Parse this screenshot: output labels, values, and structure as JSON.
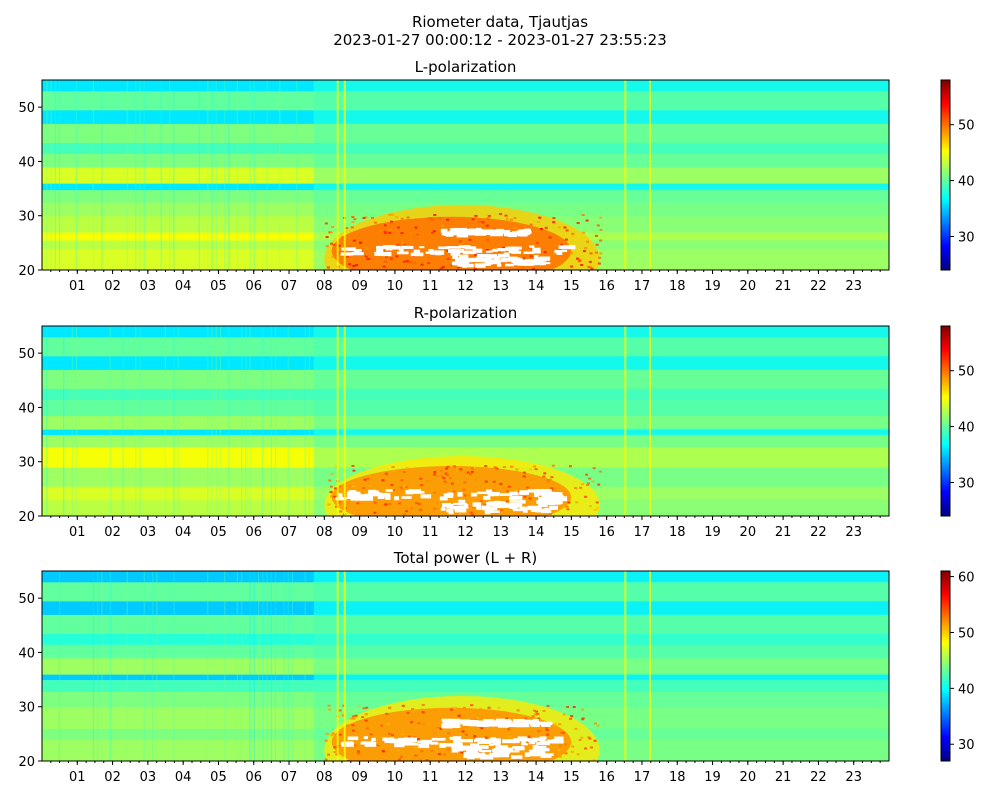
{
  "title": "Riometer data, Tjautjas",
  "subtitle": "2023-01-27 00:00:12 - 2023-01-27 23:55:23",
  "colormap": [
    "#00007f",
    "#0000ff",
    "#007fff",
    "#00ffff",
    "#7fff7f",
    "#ffff00",
    "#ff7f00",
    "#ff0000",
    "#7f0000"
  ],
  "chart_data": [
    {
      "type": "heatmap",
      "title": "L-polarization",
      "xlabel": "",
      "ylabel": "",
      "xlim": [
        0,
        24
      ],
      "ylim": [
        20,
        55
      ],
      "xticks": [
        "01",
        "02",
        "03",
        "04",
        "05",
        "06",
        "07",
        "08",
        "09",
        "10",
        "11",
        "12",
        "13",
        "14",
        "15",
        "16",
        "17",
        "18",
        "19",
        "20",
        "21",
        "22",
        "23"
      ],
      "yticks": [
        20,
        30,
        40,
        50
      ],
      "colorbar": {
        "range": [
          24,
          58
        ],
        "ticks": [
          30,
          40,
          50
        ]
      },
      "features": {
        "bands": [
          {
            "y": [
              20,
              24
            ],
            "value": 44
          },
          {
            "y": [
              24,
              25.5
            ],
            "value": 43
          },
          {
            "y": [
              25.5,
              27
            ],
            "value": 45
          },
          {
            "y": [
              27,
              30
            ],
            "value": 43
          },
          {
            "y": [
              30,
              32.5
            ],
            "value": 42
          },
          {
            "y": [
              32.5,
              34.8
            ],
            "value": 41
          },
          {
            "y": [
              34.8,
              36
            ],
            "value": 36
          },
          {
            "y": [
              36,
              39
            ],
            "value": 44
          },
          {
            "y": [
              39,
              41.5
            ],
            "value": 41
          },
          {
            "y": [
              41.5,
              43.5
            ],
            "value": 39
          },
          {
            "y": [
              43.5,
              47
            ],
            "value": 41
          },
          {
            "y": [
              47,
              49.5
            ],
            "value": 36
          },
          {
            "y": [
              49.5,
              53
            ],
            "value": 40
          },
          {
            "y": [
              53,
              55
            ],
            "value": 36
          }
        ],
        "quiet_value": 39,
        "hot_region": {
          "x": [
            8,
            15.8
          ],
          "y": [
            20,
            30.5
          ],
          "value": 50
        },
        "saturated_regions": [
          {
            "x": [
              8.4,
              14.8
            ],
            "y": [
              23.2,
              24.6
            ]
          },
          {
            "x": [
              11.3,
              13.7
            ],
            "y": [
              26.8,
              27.8
            ]
          },
          {
            "x": [
              11.6,
              14.2
            ],
            "y": [
              21,
              23
            ]
          }
        ],
        "spike_columns": [
          8.35,
          8.55,
          16.5,
          17.2
        ]
      }
    },
    {
      "type": "heatmap",
      "title": "R-polarization",
      "xlabel": "",
      "ylabel": "",
      "xlim": [
        0,
        24
      ],
      "ylim": [
        20,
        55
      ],
      "xticks": [
        "01",
        "02",
        "03",
        "04",
        "05",
        "06",
        "07",
        "08",
        "09",
        "10",
        "11",
        "12",
        "13",
        "14",
        "15",
        "16",
        "17",
        "18",
        "19",
        "20",
        "21",
        "22",
        "23"
      ],
      "yticks": [
        20,
        30,
        40,
        50
      ],
      "colorbar": {
        "range": [
          24,
          58
        ],
        "ticks": [
          30,
          40,
          50
        ]
      },
      "features": {
        "bands": [
          {
            "y": [
              20,
              23
            ],
            "value": 43
          },
          {
            "y": [
              23,
              25.5
            ],
            "value": 44
          },
          {
            "y": [
              25.5,
              29
            ],
            "value": 42
          },
          {
            "y": [
              29,
              32.8
            ],
            "value": 45
          },
          {
            "y": [
              32.8,
              35
            ],
            "value": 42
          },
          {
            "y": [
              35,
              36.2
            ],
            "value": 36
          },
          {
            "y": [
              36,
              38.5
            ],
            "value": 42
          },
          {
            "y": [
              38.5,
              41.5
            ],
            "value": 40
          },
          {
            "y": [
              41.5,
              43.5
            ],
            "value": 39
          },
          {
            "y": [
              43.5,
              47
            ],
            "value": 41
          },
          {
            "y": [
              47,
              49.5
            ],
            "value": 36
          },
          {
            "y": [
              49.5,
              53
            ],
            "value": 40
          },
          {
            "y": [
              53,
              55
            ],
            "value": 36
          }
        ],
        "quiet_value": 39,
        "hot_region": {
          "x": [
            8,
            15.8
          ],
          "y": [
            20,
            29.5
          ],
          "value": 49
        },
        "saturated_regions": [
          {
            "x": [
              8.3,
              14.6
            ],
            "y": [
              23.4,
              25
            ]
          },
          {
            "x": [
              11.3,
              14.4
            ],
            "y": [
              21,
              23
            ]
          }
        ],
        "spike_columns": [
          8.35,
          8.55,
          16.5,
          17.2
        ]
      }
    },
    {
      "type": "heatmap",
      "title": "Total power (L + R)",
      "xlabel": "",
      "ylabel": "",
      "xlim": [
        0,
        24
      ],
      "ylim": [
        20,
        55
      ],
      "xticks": [
        "01",
        "02",
        "03",
        "04",
        "05",
        "06",
        "07",
        "08",
        "09",
        "10",
        "11",
        "12",
        "13",
        "14",
        "15",
        "16",
        "17",
        "18",
        "19",
        "20",
        "21",
        "22",
        "23"
      ],
      "yticks": [
        20,
        30,
        40,
        50
      ],
      "colorbar": {
        "range": [
          27,
          61
        ],
        "ticks": [
          30,
          40,
          50,
          60
        ]
      },
      "features": {
        "bands": [
          {
            "y": [
              20,
              24
            ],
            "value": 45
          },
          {
            "y": [
              24,
              26
            ],
            "value": 44
          },
          {
            "y": [
              26,
              30
            ],
            "value": 45
          },
          {
            "y": [
              30,
              32.8
            ],
            "value": 44
          },
          {
            "y": [
              32.8,
              35
            ],
            "value": 42
          },
          {
            "y": [
              35,
              36.2
            ],
            "value": 38
          },
          {
            "y": [
              36,
              39
            ],
            "value": 45
          },
          {
            "y": [
              39,
              41.5
            ],
            "value": 43
          },
          {
            "y": [
              41.5,
              43.5
            ],
            "value": 41
          },
          {
            "y": [
              43.5,
              47
            ],
            "value": 43
          },
          {
            "y": [
              47,
              49.5
            ],
            "value": 38
          },
          {
            "y": [
              49.5,
              53
            ],
            "value": 43
          },
          {
            "y": [
              53,
              55
            ],
            "value": 38
          }
        ],
        "quiet_value": 42,
        "hot_region": {
          "x": [
            8,
            15.8
          ],
          "y": [
            20,
            30.5
          ],
          "value": 52
        },
        "saturated_regions": [
          {
            "x": [
              8.4,
              14.6
            ],
            "y": [
              23.2,
              24.6
            ]
          },
          {
            "x": [
              11.3,
              14.2
            ],
            "y": [
              26.8,
              27.8
            ]
          },
          {
            "x": [
              11.6,
              14.2
            ],
            "y": [
              21,
              23
            ]
          }
        ],
        "spike_columns": [
          8.35,
          8.55,
          16.5,
          17.2
        ]
      }
    }
  ]
}
